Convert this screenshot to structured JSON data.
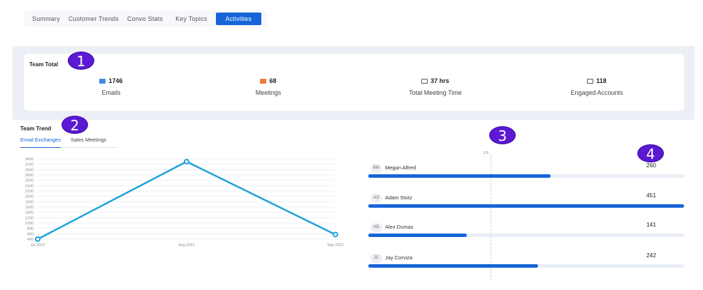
{
  "tabs": [
    {
      "label": "Summary",
      "active": false
    },
    {
      "label": "Customer Trends",
      "active": false
    },
    {
      "label": "Convo Stats",
      "active": false
    },
    {
      "label": "Key Topics",
      "active": false
    },
    {
      "label": "Activities",
      "active": true
    }
  ],
  "team_total": {
    "title": "Team Total",
    "stats": [
      {
        "icon": "envelope-icon",
        "icon_color": "#3d8be0",
        "value": "1746",
        "label": "Emails"
      },
      {
        "icon": "video-camera-icon",
        "icon_color": "#f07a3a",
        "value": "68",
        "label": "Meetings"
      },
      {
        "icon": "briefcase-icon",
        "icon_color": "#555555",
        "value": "37 hrs",
        "label": "Total Meeting Time"
      },
      {
        "icon": "briefcase-icon",
        "icon_color": "#555555",
        "value": "118",
        "label": "Engaged Accounts"
      }
    ]
  },
  "badges": [
    "1",
    "2",
    "3",
    "4"
  ],
  "team_trend": {
    "title": "Team Trend",
    "subtabs": [
      {
        "label": "Email Exchanges",
        "active": true
      },
      {
        "label": "Sales Meetings",
        "active": false
      }
    ]
  },
  "chart_data": {
    "type": "line",
    "title": "",
    "xlabel": "",
    "ylabel": "",
    "categories": [
      "Jul 2022",
      "Aug 2022",
      "Sep 2022"
    ],
    "series": [
      {
        "color": "#1aa3dc",
        "values": [
          400,
          3300,
          570
        ]
      }
    ],
    "yticks": [
      400,
      600,
      800,
      1000,
      1200,
      1400,
      1600,
      1800,
      2000,
      2200,
      2400,
      2600,
      2800,
      3000,
      3200,
      3400
    ],
    "ylim": [
      400,
      3400
    ],
    "grid": true,
    "legend": "none"
  },
  "leaderboard": {
    "marker_label": "175",
    "max_value": 451,
    "rows": [
      {
        "initials": "MA",
        "name": "Megan Alfred",
        "value": 260
      },
      {
        "initials": "AS",
        "name": "Adam Stotz",
        "value": 451
      },
      {
        "initials": "AD",
        "name": "Alex Dumas",
        "value": 141
      },
      {
        "initials": "JC",
        "name": "Jay Corviza",
        "value": 242
      }
    ]
  },
  "colors": {
    "accent": "#1565d8",
    "badge": "#5b19d3",
    "line": "#1aa3dc"
  }
}
